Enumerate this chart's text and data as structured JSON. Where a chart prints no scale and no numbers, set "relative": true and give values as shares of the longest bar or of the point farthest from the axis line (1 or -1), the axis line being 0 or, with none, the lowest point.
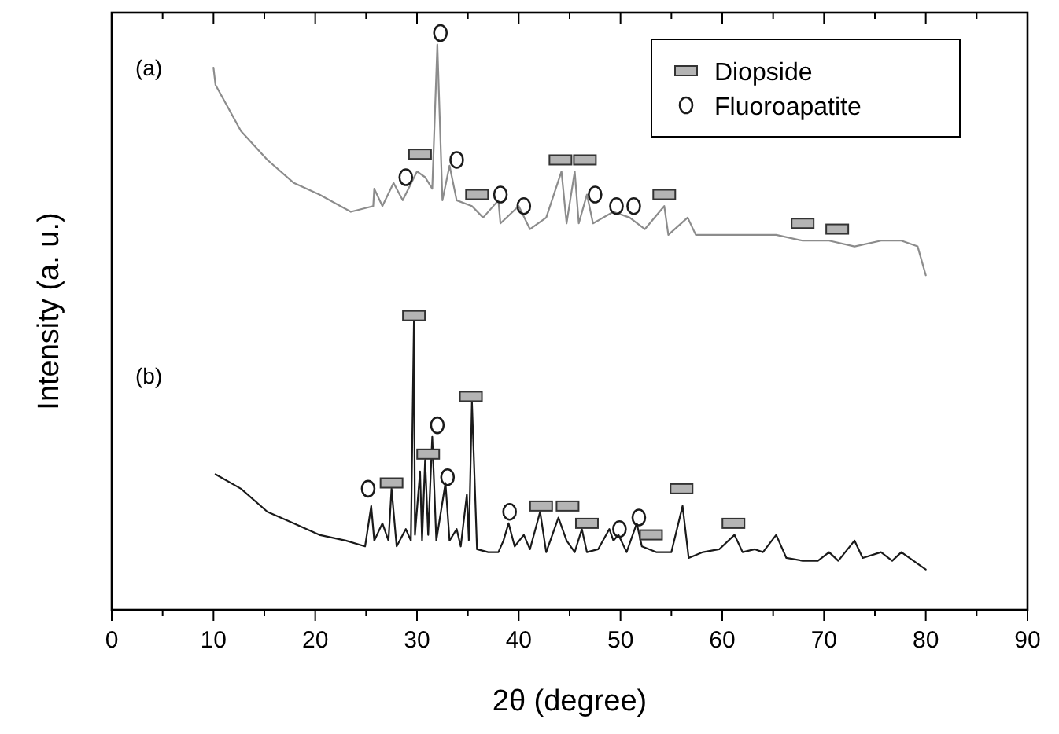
{
  "chart_data": {
    "type": "line",
    "xlabel": "2θ (degree)",
    "ylabel": "Intensity (a. u.)",
    "relative": true,
    "xlim": [
      0,
      90
    ],
    "xticks": [
      0,
      {
        "value": 5,
        "label": null
      },
      10,
      {
        "value": 15,
        "label": null
      },
      20,
      {
        "value": 25,
        "label": null
      },
      30,
      {
        "value": 35,
        "label": null
      },
      40,
      {
        "value": 45,
        "label": null
      },
      50,
      {
        "value": 55,
        "label": null
      },
      60,
      {
        "value": 65,
        "label": null
      },
      70,
      {
        "value": 75,
        "label": null
      },
      80,
      {
        "value": 85,
        "label": null
      },
      90
    ],
    "grid": false,
    "legend": "top right",
    "annotations": [
      "(a)",
      "(b)"
    ],
    "series": [
      {
        "color": "#8c8c8c",
        "x": [
          10,
          10.2,
          12.7,
          15.3,
          17.9,
          20.4,
          23.5,
          25.7,
          25.8,
          26.6,
          27.7,
          28.6,
          30,
          30.8,
          31.5,
          32,
          32.5,
          33.2,
          33.9,
          35.4,
          36.5,
          38,
          38.2,
          40,
          41.1,
          42.7,
          44.2,
          44.7,
          45.5,
          45.9,
          46.7,
          47.3,
          49.3,
          50.9,
          52.4,
          54.3,
          54.7,
          56.6,
          57.4,
          60.2,
          62.8,
          65.3,
          67.9,
          70.5,
          73,
          75.6,
          77.6,
          79.2,
          80
        ],
        "values": [
          0.94,
          0.91,
          0.83,
          0.78,
          0.74,
          0.72,
          0.69,
          0.7,
          0.73,
          0.7,
          0.74,
          0.71,
          0.76,
          0.75,
          0.73,
          0.98,
          0.71,
          0.77,
          0.71,
          0.7,
          0.68,
          0.71,
          0.67,
          0.7,
          0.66,
          0.68,
          0.76,
          0.67,
          0.76,
          0.67,
          0.72,
          0.67,
          0.69,
          0.68,
          0.66,
          0.7,
          0.65,
          0.68,
          0.65,
          0.65,
          0.65,
          0.65,
          0.64,
          0.64,
          0.63,
          0.64,
          0.64,
          0.63,
          0.58
        ]
      },
      {
        "color": "#1a1a1a",
        "x": [
          10.2,
          12.7,
          15.3,
          17.9,
          20.4,
          23,
          24.9,
          25.5,
          25.8,
          26.6,
          27.2,
          27.5,
          28,
          28.9,
          29.4,
          29.7,
          29.8,
          30.3,
          30.5,
          30.8,
          31.1,
          31.5,
          31.9,
          32.8,
          33.2,
          33.9,
          34.3,
          34.9,
          35.1,
          35.4,
          35.9,
          37,
          38,
          38.5,
          39,
          39.6,
          40.5,
          41.1,
          42.1,
          42.7,
          43.9,
          44.7,
          45.5,
          46.2,
          46.7,
          47.8,
          48.9,
          49.3,
          49.8,
          50.6,
          51.6,
          52.1,
          53.5,
          55,
          56.1,
          56.7,
          58.1,
          59.7,
          61.2,
          62,
          63.2,
          64,
          65.3,
          66.3,
          67.9,
          69.4,
          70.5,
          71.4,
          73,
          73.8,
          75.6,
          76.7,
          77.6,
          79.2,
          80
        ],
        "values": [
          0.235,
          0.21,
          0.17,
          0.15,
          0.13,
          0.12,
          0.11,
          0.18,
          0.12,
          0.15,
          0.12,
          0.21,
          0.11,
          0.14,
          0.12,
          0.5,
          0.13,
          0.24,
          0.12,
          0.26,
          0.13,
          0.3,
          0.12,
          0.22,
          0.12,
          0.14,
          0.11,
          0.2,
          0.12,
          0.36,
          0.105,
          0.1,
          0.1,
          0.12,
          0.15,
          0.11,
          0.13,
          0.105,
          0.17,
          0.1,
          0.16,
          0.12,
          0.1,
          0.14,
          0.1,
          0.105,
          0.14,
          0.12,
          0.13,
          0.1,
          0.15,
          0.11,
          0.1,
          0.1,
          0.18,
          0.09,
          0.1,
          0.105,
          0.13,
          0.1,
          0.105,
          0.1,
          0.13,
          0.09,
          0.085,
          0.085,
          0.1,
          0.085,
          0.12,
          0.09,
          0.1,
          0.085,
          0.1,
          0.08,
          0.07
        ]
      },
      {
        "type": "scatter",
        "name": "Diopside",
        "color": "#b4b4b4",
        "marker": "square",
        "x": [
          30.3,
          35.9,
          44.1,
          46.5,
          54.3,
          67.9,
          71.3,
          29.7,
          27.5,
          31.1,
          35.3,
          42.2,
          44.8,
          46.7,
          53,
          56,
          61.1
        ],
        "values": [
          0.79,
          0.72,
          0.78,
          0.78,
          0.72,
          0.67,
          0.66,
          0.51,
          0.22,
          0.27,
          0.37,
          0.18,
          0.18,
          0.15,
          0.13,
          0.21,
          0.15
        ]
      },
      {
        "type": "scatter",
        "name": "Fluoroapatite",
        "color": "#1a1a1a",
        "marker": "circle",
        "x": [
          32.3,
          28.9,
          33.9,
          38.2,
          40.5,
          47.5,
          49.6,
          51.3,
          25.2,
          32,
          33,
          39.1,
          49.9,
          51.8
        ],
        "values": [
          1,
          0.75,
          0.78,
          0.72,
          0.7,
          0.72,
          0.7,
          0.7,
          0.21,
          0.32,
          0.23,
          0.17,
          0.14,
          0.16
        ]
      }
    ]
  }
}
